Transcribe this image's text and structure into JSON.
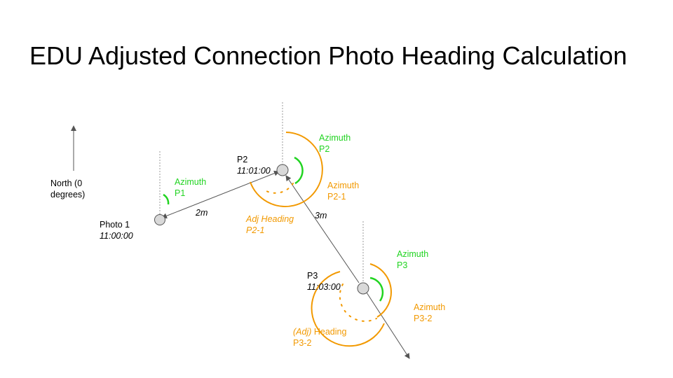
{
  "title": "EDU Adjusted Connection Photo Heading Calculation",
  "colors": {
    "azimuth": "#21d421",
    "heading": "#f29900",
    "line": "#555555",
    "node_fill": "#d9d9d9"
  },
  "north": {
    "line1": "North (0",
    "line2": "degrees)"
  },
  "photos": [
    {
      "name": "Photo 1",
      "time": "11:00:00",
      "azimuth": [
        "Azimuth",
        "P1"
      ]
    },
    {
      "name": "P2",
      "time": "11:01:00",
      "azimuth": [
        "Azimuth",
        "P2"
      ],
      "azimuth_connection": [
        "Azimuth",
        "P2-1"
      ],
      "adj_heading": [
        "Adj Heading",
        "P2-1"
      ]
    },
    {
      "name": "P3",
      "time": "11:03:00",
      "azimuth": [
        "Azimuth",
        "P3"
      ],
      "azimuth_connection": [
        "Azimuth",
        "P3-2"
      ],
      "adj_heading": {
        "prefix": "(Adj)",
        "word": " Heading",
        "id": "P3-2"
      }
    }
  ],
  "distances": [
    "2m",
    "3m"
  ]
}
